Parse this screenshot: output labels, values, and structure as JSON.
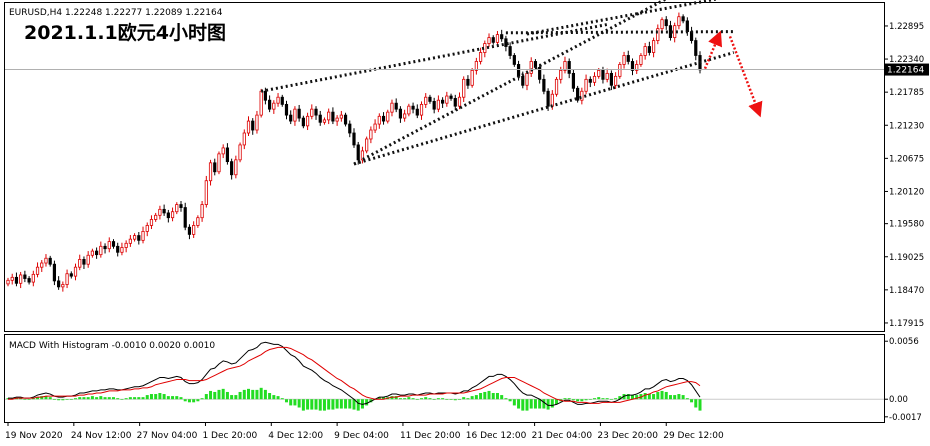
{
  "header": {
    "symbol_info": "EURUSD,H4  1.22248 1.22277 1.22089 1.22164",
    "title": "2021.1.1欧元4小时图"
  },
  "macd_panel": {
    "label": "MACD With Histogram -0.0010 0.0020 0.0010",
    "y_ticks": [
      "0.0056",
      "0.00",
      "-0.0017"
    ]
  },
  "colors": {
    "bull": "#dd0000",
    "bear": "#000000",
    "trendline": "#111111",
    "arrow": "#ee1111",
    "macd_line": "#000000",
    "signal_line": "#e00000",
    "histogram": "#22dd22",
    "price_box": "#000000"
  },
  "chart_data": {
    "type": "candlestick",
    "title": "2021.1.1欧元4小时图",
    "symbol": "EURUSD",
    "timeframe": "H4",
    "ohlc_last": {
      "open": 1.22248,
      "high": 1.22277,
      "low": 1.22089,
      "close": 1.22164
    },
    "current_price_label": "1.22164",
    "y_ticks": [
      "1.22895",
      "1.22340",
      "1.21785",
      "1.21230",
      "1.20675",
      "1.20120",
      "1.19580",
      "1.19025",
      "1.18470",
      "1.17915"
    ],
    "x_ticks": [
      "19 Nov 2020",
      "24 Nov 12:00",
      "27 Nov 04:00",
      "1 Dec 20:00",
      "4 Dec 12:00",
      "9 Dec 04:00",
      "11 Dec 20:00",
      "16 Dec 12:00",
      "21 Dec 04:00",
      "23 Dec 20:00",
      "29 Dec 12:00"
    ],
    "ylim": [
      1.1778,
      1.2328
    ],
    "closes": [
      1.1863,
      1.1868,
      1.1858,
      1.1872,
      1.1866,
      1.186,
      1.1873,
      1.1885,
      1.1892,
      1.19,
      1.189,
      1.1862,
      1.1852,
      1.1856,
      1.1874,
      1.187,
      1.1885,
      1.1898,
      1.189,
      1.1905,
      1.1912,
      1.1906,
      1.192,
      1.1916,
      1.1928,
      1.192,
      1.191,
      1.1918,
      1.1925,
      1.1932,
      1.1938,
      1.193,
      1.1945,
      1.1955,
      1.1965,
      1.1972,
      1.1982,
      1.1976,
      1.1968,
      1.1978,
      1.199,
      1.1985,
      1.1952,
      1.194,
      1.1955,
      1.1968,
      1.199,
      1.203,
      1.206,
      1.2045,
      1.2075,
      1.2085,
      1.2062,
      1.204,
      1.2065,
      1.209,
      1.211,
      1.213,
      1.2115,
      1.214,
      1.218,
      1.2165,
      1.215,
      1.216,
      1.217,
      1.2158,
      1.214,
      1.213,
      1.215,
      1.2135,
      1.2122,
      1.2138,
      1.215,
      1.214,
      1.2128,
      1.2132,
      1.2145,
      1.213,
      1.2135,
      1.214,
      1.2125,
      1.211,
      1.209,
      1.2065,
      1.208,
      1.21,
      1.2115,
      1.2125,
      1.2138,
      1.213,
      1.2145,
      1.216,
      1.215,
      1.2135,
      1.2142,
      1.2155,
      1.215,
      1.214,
      1.2158,
      1.217,
      1.2163,
      1.215,
      1.2165,
      1.216,
      1.2172,
      1.2168,
      1.2155,
      1.217,
      1.22,
      1.219,
      1.2215,
      1.223,
      1.2245,
      1.226,
      1.227,
      1.2262,
      1.2275,
      1.2268,
      1.2255,
      1.224,
      1.2225,
      1.2205,
      1.219,
      1.221,
      1.223,
      1.222,
      1.22,
      1.218,
      1.2155,
      1.2175,
      1.22,
      1.2215,
      1.223,
      1.221,
      1.2185,
      1.2165,
      1.218,
      1.22,
      1.2195,
      1.2205,
      1.2215,
      1.22,
      1.221,
      1.219,
      1.2205,
      1.2225,
      1.224,
      1.223,
      1.2215,
      1.2225,
      1.224,
      1.2255,
      1.2245,
      1.2265,
      1.2285,
      1.23,
      1.229,
      1.227,
      1.229,
      1.2305,
      1.2298,
      1.228,
      1.2265,
      1.224,
      1.2216
    ],
    "macd": {
      "name": "MACD With Histogram",
      "values_text": "-0.0010 0.0020 0.0010",
      "ylim": [
        -0.0022,
        0.0062
      ],
      "macd_line": [
        0.0001,
        0.0001,
        0.0002,
        0.0002,
        0.0001,
        0.0001,
        0.0002,
        0.0004,
        0.0005,
        0.0006,
        0.0005,
        0.0003,
        0.0002,
        0.0002,
        0.0003,
        0.0003,
        0.0004,
        0.0006,
        0.0006,
        0.0007,
        0.0008,
        0.0008,
        0.0009,
        0.0009,
        0.001,
        0.001,
        0.0009,
        0.0009,
        0.001,
        0.0011,
        0.0012,
        0.0012,
        0.0013,
        0.0015,
        0.0017,
        0.0019,
        0.0021,
        0.0021,
        0.002,
        0.0021,
        0.0022,
        0.0021,
        0.0017,
        0.0015,
        0.0015,
        0.0016,
        0.0019,
        0.0024,
        0.0029,
        0.003,
        0.0034,
        0.0037,
        0.0036,
        0.0034,
        0.0035,
        0.0039,
        0.0043,
        0.0047,
        0.0048,
        0.005,
        0.0054,
        0.0055,
        0.0054,
        0.0053,
        0.0053,
        0.0051,
        0.0047,
        0.0043,
        0.0041,
        0.0037,
        0.0032,
        0.003,
        0.0028,
        0.0025,
        0.0021,
        0.0018,
        0.0016,
        0.0013,
        0.0011,
        0.0009,
        0.0006,
        0.0003,
        0.0,
        -0.0004,
        -0.0005,
        -0.0004,
        -0.0002,
        0.0,
        0.0002,
        0.0002,
        0.0003,
        0.0005,
        0.0005,
        0.0004,
        0.0004,
        0.0005,
        0.0005,
        0.0004,
        0.0005,
        0.0006,
        0.0006,
        0.0005,
        0.0006,
        0.0006,
        0.0006,
        0.0006,
        0.0005,
        0.0006,
        0.0008,
        0.0008,
        0.0011,
        0.0013,
        0.0016,
        0.0019,
        0.0022,
        0.0022,
        0.0024,
        0.0024,
        0.0022,
        0.0019,
        0.0015,
        0.001,
        0.0006,
        0.0004,
        0.0004,
        0.0002,
        0.0,
        -0.0003,
        -0.0006,
        -0.0006,
        -0.0005,
        -0.0003,
        -0.0001,
        -0.0001,
        -0.0003,
        -0.0005,
        -0.0005,
        -0.0004,
        -0.0004,
        -0.0003,
        -0.0002,
        -0.0002,
        -0.0002,
        -0.0003,
        -0.0002,
        0.0,
        0.0003,
        0.0004,
        0.0004,
        0.0005,
        0.0007,
        0.001,
        0.001,
        0.0012,
        0.0015,
        0.0018,
        0.0019,
        0.0017,
        0.0018,
        0.002,
        0.002,
        0.0018,
        0.0014,
        0.0008,
        0.0002
      ],
      "signal_line": [
        0.0,
        0.0,
        0.0001,
        0.0001,
        0.0001,
        0.0001,
        0.0001,
        0.0002,
        0.0002,
        0.0003,
        0.0003,
        0.0003,
        0.0003,
        0.0003,
        0.0003,
        0.0003,
        0.0003,
        0.0004,
        0.0004,
        0.0005,
        0.0005,
        0.0006,
        0.0006,
        0.0007,
        0.0008,
        0.0008,
        0.0008,
        0.0009,
        0.0009,
        0.0009,
        0.001,
        0.001,
        0.0011,
        0.0011,
        0.0012,
        0.0014,
        0.0015,
        0.0016,
        0.0017,
        0.0018,
        0.0019,
        0.0019,
        0.0019,
        0.0018,
        0.0018,
        0.0018,
        0.0018,
        0.0019,
        0.0021,
        0.0023,
        0.0025,
        0.0027,
        0.0029,
        0.003,
        0.0031,
        0.0032,
        0.0034,
        0.0037,
        0.0039,
        0.0041,
        0.0043,
        0.0046,
        0.0048,
        0.0049,
        0.005,
        0.005,
        0.005,
        0.0049,
        0.0047,
        0.0045,
        0.0043,
        0.004,
        0.0038,
        0.0035,
        0.0032,
        0.0029,
        0.0026,
        0.0023,
        0.002,
        0.0018,
        0.0015,
        0.0012,
        0.001,
        0.0007,
        0.0004,
        0.0002,
        0.0001,
        0.0,
        0.0,
        0.0,
        0.0001,
        0.0002,
        0.0002,
        0.0003,
        0.0003,
        0.0003,
        0.0004,
        0.0004,
        0.0004,
        0.0004,
        0.0005,
        0.0005,
        0.0005,
        0.0005,
        0.0006,
        0.0006,
        0.0006,
        0.0006,
        0.0006,
        0.0007,
        0.0008,
        0.0009,
        0.001,
        0.0012,
        0.0014,
        0.0016,
        0.0018,
        0.002,
        0.0021,
        0.0021,
        0.0021,
        0.0019,
        0.0017,
        0.0015,
        0.0013,
        0.0011,
        0.0009,
        0.0006,
        0.0004,
        0.0002,
        0.0,
        -0.0001,
        -0.0002,
        -0.0002,
        -0.0002,
        -0.0003,
        -0.0003,
        -0.0003,
        -0.0004,
        -0.0004,
        -0.0004,
        -0.0003,
        -0.0003,
        -0.0003,
        -0.0003,
        -0.0003,
        -0.0002,
        -0.0001,
        0.0,
        0.0001,
        0.0002,
        0.0004,
        0.0005,
        0.0007,
        0.0008,
        0.001,
        0.0012,
        0.0013,
        0.0014,
        0.0015,
        0.0016,
        0.0017,
        0.0017,
        0.0016,
        0.0013
      ]
    }
  }
}
